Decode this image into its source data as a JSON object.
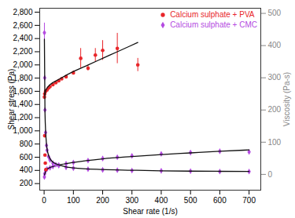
{
  "chart_data": {
    "type": "scatter",
    "xlabel": "Shear rate (1/s)",
    "ylabel": "Shear stress (Pa)",
    "y2label": "Viscosity (Pa-s)",
    "xlim": [
      -15,
      740
    ],
    "xticks": [
      0,
      100,
      200,
      300,
      400,
      500,
      600,
      700
    ],
    "ylim": [
      100,
      2860
    ],
    "yticks": [
      200,
      400,
      600,
      800,
      1000,
      1200,
      1400,
      1600,
      1800,
      2000,
      2200,
      2400,
      2600,
      2800
    ],
    "y2lim": [
      -49,
      516
    ],
    "y2ticks": [
      0,
      100,
      200,
      300,
      400,
      500
    ],
    "grid": false,
    "legend": "top-right",
    "series": [
      {
        "name": "Calcium sulphate + PVA",
        "type": "scatter",
        "marker": "circle",
        "color": "#e8262a",
        "x": [
          2,
          5,
          10,
          15,
          20,
          30,
          40,
          50,
          60,
          75,
          100,
          125,
          150,
          175,
          200,
          250,
          320
        ],
        "values": [
          1560,
          1600,
          1620,
          1650,
          1670,
          1700,
          1730,
          1760,
          1790,
          1820,
          1880,
          2100,
          1950,
          2150,
          2220,
          2250,
          2000
        ],
        "errors": [
          20,
          20,
          20,
          20,
          20,
          20,
          20,
          20,
          20,
          20,
          30,
          150,
          40,
          100,
          150,
          230,
          100
        ]
      },
      {
        "type": "line",
        "line_style": "solid",
        "color": "#111111",
        "x": [
          1,
          5,
          10,
          20,
          50,
          100,
          150,
          200,
          250,
          320
        ],
        "values": [
          1500,
          1600,
          1650,
          1700,
          1780,
          1900,
          2000,
          2100,
          2200,
          2340
        ]
      },
      {
        "name": "Calcium sulphate + CMC",
        "type": "scatter",
        "marker": "diamond",
        "color": "#b44be1",
        "x": [
          1,
          2,
          5,
          10,
          20,
          30,
          50,
          75,
          100,
          150,
          200,
          250,
          300,
          400,
          500,
          600,
          700
        ],
        "values": [
          300,
          350,
          400,
          420,
          440,
          460,
          480,
          500,
          520,
          550,
          580,
          600,
          620,
          650,
          670,
          690,
          680
        ]
      },
      {
        "type": "line",
        "line_style": "solid",
        "color": "#111111",
        "x": [
          1,
          10,
          50,
          100,
          200,
          300,
          400,
          500,
          600,
          700
        ],
        "values": [
          330,
          420,
          480,
          520,
          575,
          610,
          640,
          665,
          690,
          710
        ]
      },
      {
        "type": "scatter",
        "marker": "circle",
        "color": "#e8262a",
        "axis": "y2",
        "x": [
          1,
          2,
          3,
          4,
          6
        ],
        "values": [
          240,
          120,
          60,
          35,
          15
        ]
      },
      {
        "type": "scatter",
        "marker": "diamond",
        "color": "#b44be1",
        "axis": "y2",
        "x": [
          1,
          2,
          3,
          5,
          8,
          10,
          15,
          20,
          30,
          40,
          50,
          75,
          100,
          150,
          200,
          250,
          300,
          400,
          500,
          600,
          700
        ],
        "values": [
          440,
          300,
          200,
          130,
          90,
          75,
          55,
          45,
          35,
          30,
          27,
          22,
          19,
          16,
          14,
          13,
          12,
          11,
          10,
          9,
          9
        ],
        "errors": [
          30,
          0,
          0,
          0,
          0,
          0,
          0,
          0,
          0,
          0,
          0,
          0,
          0,
          0,
          0,
          0,
          0,
          0,
          0,
          0,
          0
        ]
      },
      {
        "type": "line",
        "line_style": "solid",
        "color": "#111111",
        "axis": "y2",
        "x": [
          1,
          3,
          8,
          15,
          30,
          60,
          100,
          200,
          300,
          400,
          500,
          600,
          700
        ],
        "values": [
          420,
          190,
          95,
          60,
          38,
          27,
          20,
          15,
          13,
          11,
          10,
          9.5,
          9
        ]
      }
    ]
  }
}
